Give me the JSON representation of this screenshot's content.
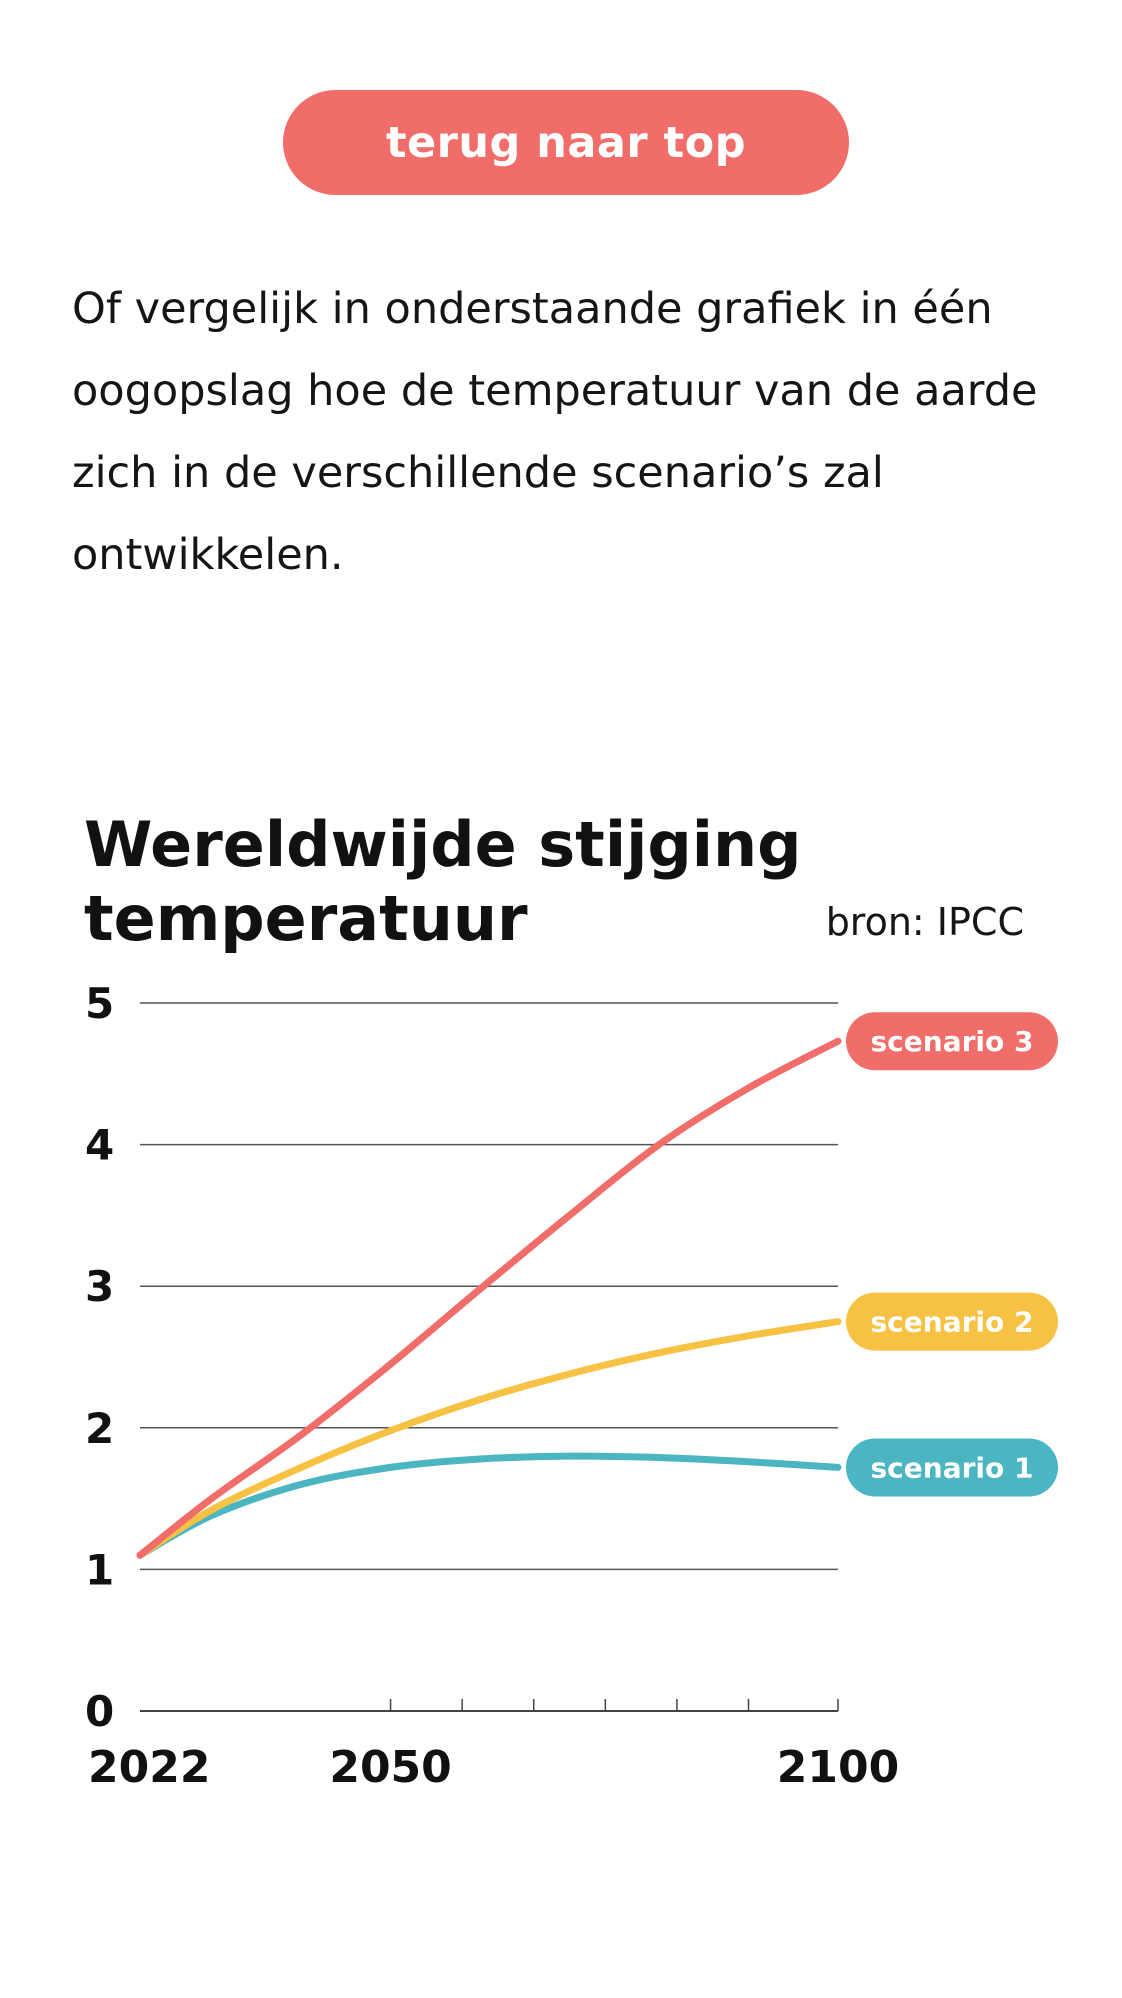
{
  "nav": {
    "back_to_top_label": "terug naar top"
  },
  "intro": {
    "text": "Of vergelijk in onderstaande grafiek in één oogopslag hoe de temperatuur van de aarde zich in de verschillende scenario’s zal ontwikkelen."
  },
  "colors": {
    "accent": "#f16d69",
    "scenario_1": "#4bb5c1",
    "scenario_2": "#f7c244",
    "scenario_3": "#f16d69",
    "gridline": "#555555",
    "text": "#111111"
  },
  "chart_data": {
    "type": "line",
    "title": "Wereldwijde stijging temperatuur",
    "source": "bron: IPCC",
    "xlabel": "",
    "ylabel": "",
    "xlim": [
      2022,
      2100
    ],
    "ylim": [
      0,
      5
    ],
    "x_ticks": [
      2022,
      2050,
      2100
    ],
    "x_minor_ticks": [
      2050,
      2058,
      2066,
      2074,
      2082,
      2090,
      2100
    ],
    "y_ticks": [
      0,
      1,
      2,
      3,
      4,
      5
    ],
    "grid": true,
    "legend": "labels at line ends, right",
    "x": [
      2022,
      2030,
      2040,
      2050,
      2060,
      2070,
      2080,
      2090,
      2100
    ],
    "series": [
      {
        "name": "scenario 1",
        "color": "#4bb5c1",
        "values": [
          1.1,
          1.38,
          1.6,
          1.72,
          1.78,
          1.8,
          1.79,
          1.76,
          1.72
        ]
      },
      {
        "name": "scenario 2",
        "color": "#f7c244",
        "values": [
          1.1,
          1.42,
          1.72,
          1.98,
          2.2,
          2.38,
          2.53,
          2.65,
          2.75
        ]
      },
      {
        "name": "scenario 3",
        "color": "#f16d69",
        "values": [
          1.1,
          1.5,
          1.95,
          2.45,
          2.98,
          3.5,
          4.0,
          4.4,
          4.73
        ]
      }
    ]
  }
}
